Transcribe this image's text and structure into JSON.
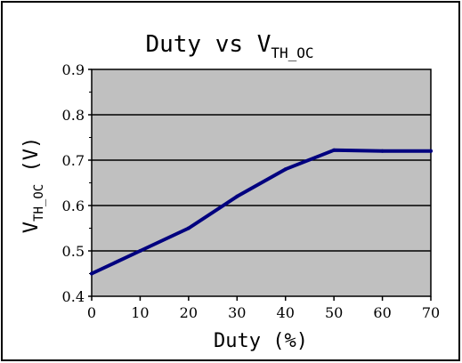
{
  "chart_data": {
    "type": "line",
    "title": "Duty  vs V",
    "title_subscript": "TH_OC",
    "xlabel": "Duty (%)",
    "ylabel": "V",
    "ylabel_subscript": "TH_OC",
    "ylabel_suffix": " (V)",
    "xlim": [
      0,
      70
    ],
    "ylim": [
      0.4,
      0.9
    ],
    "xticks": [
      0,
      10,
      20,
      30,
      40,
      50,
      60,
      70
    ],
    "xtick_labels": [
      "0",
      "10",
      "20",
      "30",
      "40",
      "50",
      "60",
      "70"
    ],
    "yticks": [
      0.4,
      0.5,
      0.6,
      0.7,
      0.8,
      0.9
    ],
    "ytick_labels": [
      "0.4",
      "0.5",
      "0.6",
      "0.7",
      "0.8",
      "0.9"
    ],
    "grid": "horizontal",
    "legend": "none",
    "series": [
      {
        "x": [
          0,
          10,
          20,
          30,
          40,
          50,
          60,
          70
        ],
        "y": [
          0.45,
          0.5,
          0.55,
          0.62,
          0.68,
          0.722,
          0.72,
          0.72
        ],
        "color": "#00007f"
      }
    ],
    "plot_background": "#c0c0c0",
    "gridline_color": "#000000"
  }
}
